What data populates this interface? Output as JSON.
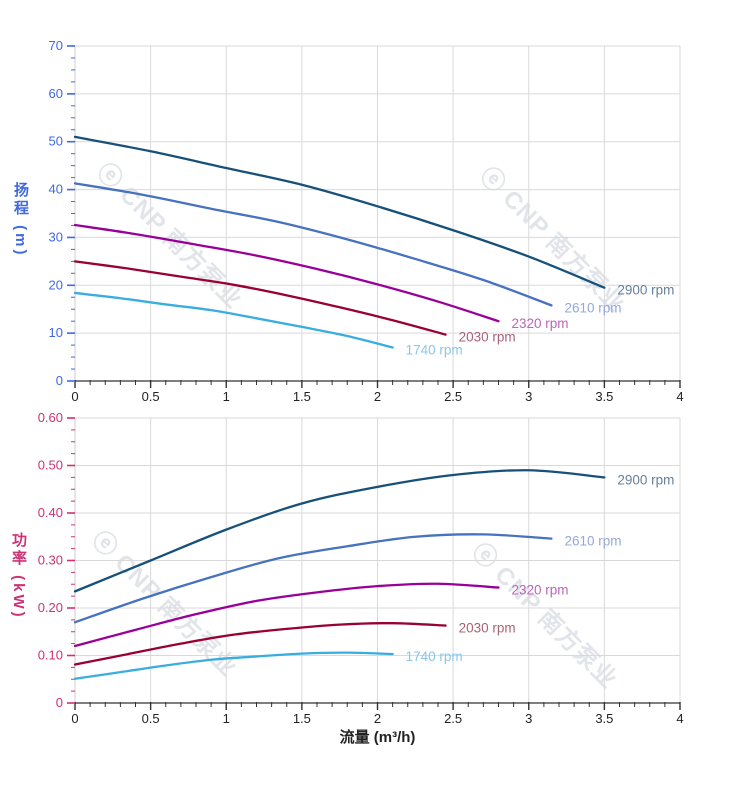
{
  "watermark": {
    "text": "ⓔ CNP 南方泵业",
    "color": "#c9cfd8"
  },
  "styles": {
    "grid_color": "#d9d9d9",
    "x_axis_line_color": "#333333",
    "y_axis_line_color": "#cccccc",
    "x_tick_color": "#333333",
    "x_tick_label_color": "#222222",
    "head_axis_color": "#4169e1",
    "power_axis_color": "#cc3377",
    "x_title_color": "#222222"
  },
  "chart_data": [
    {
      "type": "line",
      "name": "head-curve-chart",
      "ylabel": "扬程 (m)",
      "xlabel": "",
      "xlim": [
        0,
        4
      ],
      "ylim": [
        0,
        70
      ],
      "grid": true,
      "x_ticks": [
        0,
        0.5,
        1,
        1.5,
        2,
        2.5,
        3,
        3.5,
        4
      ],
      "x_tick_labels": [
        "0",
        "0.5",
        "1",
        "1.5",
        "2",
        "2.5",
        "3",
        "3.5",
        "4"
      ],
      "y_ticks": [
        0,
        10,
        20,
        30,
        40,
        50,
        60,
        70
      ],
      "y_tick_labels": [
        "0",
        "10",
        "20",
        "30",
        "40",
        "50",
        "60",
        "70"
      ],
      "x_grid_step": 0.5,
      "x_minor_step": 0.1,
      "y_minor_step": 2.5,
      "axis_color": "#4169e1",
      "series": [
        {
          "name": "2900 rpm",
          "color": "#175179",
          "label_color": "#647f9c",
          "x": [
            0,
            0.5,
            1,
            1.5,
            2,
            2.5,
            3,
            3.5
          ],
          "y": [
            51,
            48,
            44.5,
            41,
            36.5,
            31.5,
            26,
            19.5
          ]
        },
        {
          "name": "2610 rpm",
          "color": "#4672c0",
          "label_color": "#95a8d9",
          "x": [
            0,
            0.45,
            0.9,
            1.35,
            1.8,
            2.25,
            2.7,
            3.15
          ],
          "y": [
            41.3,
            38.9,
            36.0,
            33.2,
            29.6,
            25.5,
            21.1,
            15.8
          ]
        },
        {
          "name": "2320 rpm",
          "color": "#99009a",
          "label_color": "#bb65bb",
          "x": [
            0,
            0.4,
            0.8,
            1.2,
            1.6,
            2.0,
            2.4,
            2.8
          ],
          "y": [
            32.6,
            30.7,
            28.5,
            26.2,
            23.4,
            20.2,
            16.6,
            12.5
          ]
        },
        {
          "name": "2030 rpm",
          "color": "#990033",
          "label_color": "#a86276",
          "x": [
            0,
            0.35,
            0.7,
            1.05,
            1.4,
            1.75,
            2.1,
            2.45
          ],
          "y": [
            25.0,
            23.5,
            21.8,
            20.1,
            17.9,
            15.4,
            12.7,
            9.7
          ]
        },
        {
          "name": "1740 rpm",
          "color": "#3aade0",
          "label_color": "#89c6e9",
          "x": [
            0,
            0.3,
            0.6,
            0.9,
            1.2,
            1.5,
            1.8,
            2.1
          ],
          "y": [
            18.4,
            17.3,
            16.0,
            14.8,
            13.1,
            11.3,
            9.4,
            7.0
          ]
        }
      ]
    },
    {
      "type": "line",
      "name": "power-curve-chart",
      "ylabel": "功率 (kW)",
      "xlabel": "流量 (m³/h)",
      "xlim": [
        0,
        4
      ],
      "ylim": [
        0,
        0.6
      ],
      "grid": true,
      "x_ticks": [
        0,
        0.5,
        1,
        1.5,
        2,
        2.5,
        3,
        3.5,
        4
      ],
      "x_tick_labels": [
        "0",
        "0.5",
        "1",
        "1.5",
        "2",
        "2.5",
        "3",
        "3.5",
        "4"
      ],
      "y_ticks": [
        0,
        0.1,
        0.2,
        0.3,
        0.4,
        0.5,
        0.6
      ],
      "y_tick_labels": [
        "0",
        "0.10",
        "0.20",
        "0.30",
        "0.40",
        "0.50",
        "0.60"
      ],
      "x_grid_step": 0.5,
      "x_minor_step": 0.1,
      "y_minor_step": 0.025,
      "axis_color": "#cc3377",
      "series": [
        {
          "name": "2900 rpm",
          "color": "#175179",
          "label_color": "#647f9c",
          "x": [
            0,
            0.5,
            1,
            1.5,
            2,
            2.5,
            3,
            3.5
          ],
          "y": [
            0.235,
            0.3,
            0.365,
            0.42,
            0.455,
            0.48,
            0.49,
            0.475
          ]
        },
        {
          "name": "2610 rpm",
          "color": "#4672c0",
          "label_color": "#95a8d9",
          "x": [
            0,
            0.45,
            0.9,
            1.35,
            1.8,
            2.25,
            2.7,
            3.15
          ],
          "y": [
            0.17,
            0.22,
            0.265,
            0.305,
            0.33,
            0.35,
            0.355,
            0.346
          ]
        },
        {
          "name": "2320 rpm",
          "color": "#99009a",
          "label_color": "#bb65bb",
          "x": [
            0,
            0.4,
            0.8,
            1.2,
            1.6,
            2.0,
            2.4,
            2.8
          ],
          "y": [
            0.12,
            0.154,
            0.187,
            0.215,
            0.233,
            0.246,
            0.251,
            0.243
          ]
        },
        {
          "name": "2030 rpm",
          "color": "#990033",
          "label_color": "#a86276",
          "x": [
            0,
            0.35,
            0.7,
            1.05,
            1.4,
            1.75,
            2.1,
            2.45
          ],
          "y": [
            0.081,
            0.103,
            0.125,
            0.144,
            0.156,
            0.165,
            0.168,
            0.163
          ]
        },
        {
          "name": "1740 rpm",
          "color": "#3aade0",
          "label_color": "#89c6e9",
          "x": [
            0,
            0.3,
            0.6,
            0.9,
            1.2,
            1.5,
            1.8,
            2.1
          ],
          "y": [
            0.051,
            0.065,
            0.079,
            0.091,
            0.098,
            0.104,
            0.106,
            0.103
          ]
        }
      ]
    }
  ]
}
